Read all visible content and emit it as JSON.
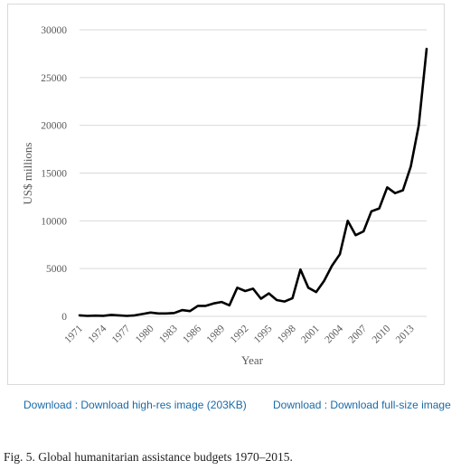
{
  "chart_data": {
    "type": "line",
    "xlabel": "Year",
    "ylabel": "US$ millions",
    "ylim": [
      0,
      30000
    ],
    "yticks": [
      0,
      5000,
      10000,
      15000,
      20000,
      25000,
      30000
    ],
    "ytick_labels": [
      "0",
      "5000",
      "10000",
      "15000",
      "20000",
      "25000",
      "30000"
    ],
    "xlim": [
      1971,
      2015
    ],
    "xtick_labels": [
      "1971",
      "1974",
      "1977",
      "1980",
      "1983",
      "1986",
      "1989",
      "1992",
      "1995",
      "1998",
      "2001",
      "2004",
      "2007",
      "2010",
      "2013"
    ],
    "grid": "horizontal",
    "legend": "none",
    "line_color": "#000000",
    "series": [
      {
        "x": [
          1971,
          1972,
          1973,
          1974,
          1975,
          1976,
          1977,
          1978,
          1979,
          1980,
          1981,
          1982,
          1983,
          1984,
          1985,
          1986,
          1987,
          1988,
          1989,
          1990,
          1991,
          1992,
          1993,
          1994,
          1995,
          1996,
          1997,
          1998,
          1999,
          2000,
          2001,
          2002,
          2003,
          2004,
          2005,
          2006,
          2007,
          2008,
          2009,
          2010,
          2011,
          2012,
          2013,
          2014,
          2015
        ],
        "y": [
          100,
          50,
          80,
          60,
          150,
          100,
          50,
          100,
          250,
          400,
          300,
          300,
          350,
          650,
          550,
          1100,
          1100,
          1350,
          1500,
          1150,
          3000,
          2650,
          2900,
          1850,
          2400,
          1700,
          1550,
          1900,
          4900,
          3000,
          2550,
          3700,
          5300,
          6500,
          10000,
          8500,
          8900,
          11000,
          11300,
          13500,
          12900,
          13200,
          15700,
          20000,
          28000
        ]
      }
    ]
  },
  "links": {
    "download_highres": "Download : Download high-res image (203KB)",
    "download_fullsize": "Download : Download full-size image"
  },
  "caption": "Fig. 5. Global humanitarian assistance budgets 1970–2015."
}
